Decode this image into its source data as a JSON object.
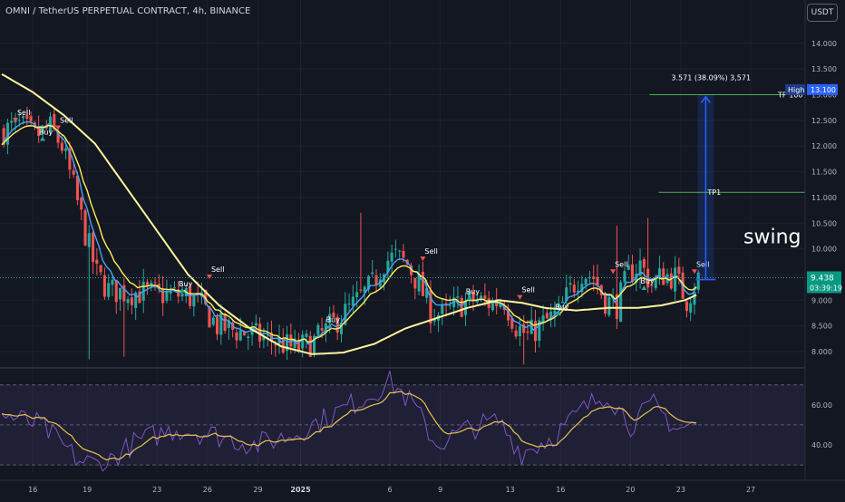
{
  "header": {
    "title": "OMNI / TetherUS PERPETUAL CONTRACT, 4h, BINANCE",
    "currency": "USDT"
  },
  "chart_data": [
    {
      "type": "candlestick",
      "title": "OMNI / TetherUS PERPETUAL CONTRACT, 4h, BINANCE",
      "y_ticks": [
        "14.000",
        "13.500",
        "13.000",
        "12.500",
        "12.000",
        "11.500",
        "11.000",
        "10.500",
        "10.000",
        "9.500",
        "9.000",
        "8.500",
        "8.000"
      ],
      "ylim": [
        7.7,
        14.35
      ],
      "x_ticks": [
        {
          "label": "16",
          "bar": 8
        },
        {
          "label": "19",
          "bar": 22
        },
        {
          "label": "23",
          "bar": 40
        },
        {
          "label": "26",
          "bar": 53
        },
        {
          "label": "29",
          "bar": 66
        },
        {
          "label": "2025",
          "bar": 77
        },
        {
          "label": "6",
          "bar": 100
        },
        {
          "label": "9",
          "bar": 113
        },
        {
          "label": "13",
          "bar": 131
        },
        {
          "label": "16",
          "bar": 144
        },
        {
          "label": "20",
          "bar": 162
        },
        {
          "label": "23",
          "bar": 175
        },
        {
          "label": "27",
          "bar": 193
        }
      ],
      "trend_anchors": [
        [
          0,
          12.3
        ],
        [
          4,
          12.4
        ],
        [
          8,
          12.2
        ],
        [
          12,
          12.35
        ],
        [
          15,
          12.0
        ],
        [
          18,
          11.2
        ],
        [
          21,
          10.3
        ],
        [
          24,
          9.5
        ],
        [
          27,
          9.2
        ],
        [
          31,
          9.15
        ],
        [
          36,
          9.15
        ],
        [
          42,
          9.1
        ],
        [
          47,
          9.1
        ],
        [
          51,
          8.9
        ],
        [
          55,
          8.5
        ],
        [
          60,
          8.4
        ],
        [
          65,
          8.3
        ],
        [
          70,
          8.2
        ],
        [
          75,
          8.05
        ],
        [
          80,
          8.2
        ],
        [
          85,
          8.55
        ],
        [
          90,
          8.9
        ],
        [
          95,
          9.3
        ],
        [
          98,
          9.75
        ],
        [
          101,
          9.85
        ],
        [
          104,
          9.7
        ],
        [
          107,
          9.3
        ],
        [
          110,
          8.8
        ],
        [
          113,
          8.7
        ],
        [
          117,
          8.9
        ],
        [
          121,
          9.0
        ],
        [
          125,
          8.95
        ],
        [
          129,
          9.0
        ],
        [
          132,
          8.5
        ],
        [
          135,
          8.3
        ],
        [
          139,
          8.55
        ],
        [
          143,
          8.75
        ],
        [
          146,
          9.2
        ],
        [
          149,
          9.55
        ],
        [
          152,
          9.45
        ],
        [
          155,
          9.0
        ],
        [
          158,
          8.9
        ],
        [
          161,
          9.5
        ],
        [
          164,
          9.7
        ],
        [
          167,
          9.3
        ],
        [
          170,
          9.5
        ],
        [
          173,
          9.45
        ],
        [
          176,
          9.0
        ],
        [
          178,
          9.3
        ],
        [
          179,
          9.44
        ]
      ],
      "ma_long_anchors": [
        [
          0,
          13.4
        ],
        [
          8,
          13.05
        ],
        [
          16,
          12.6
        ],
        [
          24,
          12.05
        ],
        [
          32,
          11.2
        ],
        [
          40,
          10.35
        ],
        [
          48,
          9.5
        ],
        [
          56,
          8.9
        ],
        [
          64,
          8.45
        ],
        [
          72,
          8.1
        ],
        [
          80,
          7.95
        ],
        [
          88,
          7.98
        ],
        [
          96,
          8.15
        ],
        [
          104,
          8.45
        ],
        [
          112,
          8.65
        ],
        [
          120,
          8.85
        ],
        [
          128,
          9.0
        ],
        [
          134,
          8.95
        ],
        [
          140,
          8.85
        ],
        [
          148,
          8.8
        ],
        [
          156,
          8.85
        ],
        [
          164,
          8.85
        ],
        [
          170,
          8.9
        ],
        [
          176,
          9.0
        ],
        [
          179,
          9.1
        ]
      ],
      "signals": [
        {
          "label": "Sell",
          "bar": 3,
          "price": 12.55,
          "dir": "down"
        },
        {
          "label": "Buy",
          "bar": 10,
          "price": 12.1,
          "dir": "up"
        },
        {
          "label": "Sell",
          "bar": 14,
          "price": 12.4,
          "dir": "down"
        },
        {
          "label": "Buy",
          "bar": 46,
          "price": 9.15,
          "dir": "up"
        },
        {
          "label": "Sell",
          "bar": 53,
          "price": 9.5,
          "dir": "down"
        },
        {
          "label": "Buy",
          "bar": 84,
          "price": 8.45,
          "dir": "up"
        },
        {
          "label": "Sell",
          "bar": 108,
          "price": 9.85,
          "dir": "down"
        },
        {
          "label": "Buy",
          "bar": 120,
          "price": 9.0,
          "dir": "up"
        },
        {
          "label": "Sell",
          "bar": 133,
          "price": 9.1,
          "dir": "down"
        },
        {
          "label": "Buy",
          "bar": 143,
          "price": 8.7,
          "dir": "up"
        },
        {
          "label": "Sell",
          "bar": 157,
          "price": 9.6,
          "dir": "down"
        },
        {
          "label": "Buy",
          "bar": 165,
          "price": 9.2,
          "dir": "up"
        },
        {
          "label": "Sell",
          "bar": 178,
          "price": 9.6,
          "dir": "down"
        }
      ],
      "annotations": {
        "measure_text": "3.571 (38.09%) 3,571",
        "measure_start_bar": 180,
        "measure_from_price": 9.4,
        "measure_to_price": 13.0,
        "tp_full_label": "TP 100%",
        "tp_full_price": 13.0,
        "tp1_label": "TP1",
        "tp1_price": 11.1,
        "swing_label": "swing",
        "swing_price": 10.25
      },
      "price_labels": {
        "high_label": "High",
        "high_value": "13.100",
        "high_price": 13.1,
        "current_value": "9.438",
        "current_price": 9.438,
        "countdown": "03:39:19"
      },
      "colors": {
        "up": "#26a69a",
        "down": "#ef5350",
        "ma_long": "#fff59d",
        "ma_mid": "#ffee58",
        "ma_fast": "#42a5f5",
        "arrow": "#2962ff",
        "tp_line": "#4caf50"
      }
    },
    {
      "type": "line",
      "name": "oscillator",
      "y_ticks": [
        "60.00",
        "40.00"
      ],
      "ylim": [
        26,
        78
      ],
      "levels": [
        70,
        50,
        30
      ],
      "colors": {
        "line": "#7e57c2",
        "signal": "#e5c24f",
        "band": "#7e57c2"
      }
    }
  ]
}
